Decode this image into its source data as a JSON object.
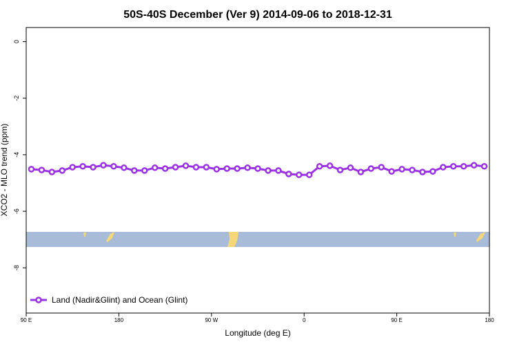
{
  "chart_data": {
    "type": "line",
    "title": "50S-40S December (Ver 9)   2014-09-06 to 2018-12-31",
    "x_label": "Longitude (deg E)",
    "y_label": "XCO2 - MLO trend (ppm)",
    "x": [
      95,
      105,
      115,
      125,
      135,
      145,
      155,
      165,
      175,
      185,
      195,
      205,
      215,
      225,
      235,
      245,
      255,
      265,
      275,
      285,
      295,
      305,
      315,
      325,
      335,
      345,
      355,
      365,
      375,
      385,
      395,
      405,
      415,
      425,
      435,
      445,
      455,
      465,
      475,
      485,
      495,
      505,
      515,
      525,
      535
    ],
    "series": [
      {
        "name": "Land (Nadir&Glint) and Ocean (Glint)",
        "color": "#9b30e6",
        "values": [
          -4.51,
          -4.54,
          -4.61,
          -4.56,
          -4.44,
          -4.41,
          -4.44,
          -4.37,
          -4.41,
          -4.46,
          -4.56,
          -4.56,
          -4.46,
          -4.49,
          -4.44,
          -4.39,
          -4.44,
          -4.44,
          -4.51,
          -4.49,
          -4.49,
          -4.46,
          -4.49,
          -4.56,
          -4.56,
          -4.68,
          -4.71,
          -4.71,
          -4.41,
          -4.39,
          -4.54,
          -4.46,
          -4.61,
          -4.49,
          -4.44,
          -4.59,
          -4.51,
          -4.54,
          -4.61,
          -4.59,
          -4.44,
          -4.41,
          -4.41,
          -4.37,
          -4.41
        ]
      }
    ],
    "xlim": [
      90,
      540
    ],
    "xticks": [
      {
        "value": 90,
        "label": "90 E"
      },
      {
        "value": 180,
        "label": "180"
      },
      {
        "value": 270,
        "label": "90 W"
      },
      {
        "value": 360,
        "label": "0"
      },
      {
        "value": 450,
        "label": "90 E"
      },
      {
        "value": 540,
        "label": "180"
      }
    ],
    "ylim": [
      -9.6,
      0.5
    ],
    "yticks": [
      0,
      -2,
      -4,
      -6,
      -8
    ],
    "legend": "bottom-left"
  }
}
